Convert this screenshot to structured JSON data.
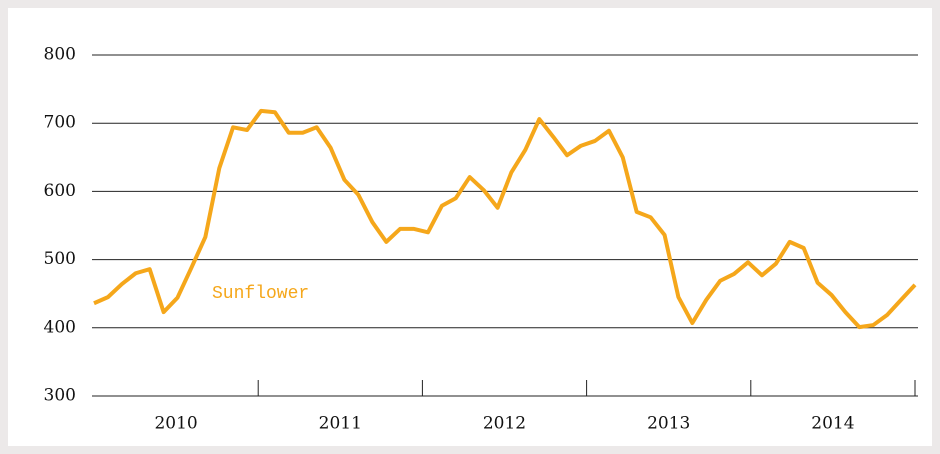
{
  "chart_data": {
    "type": "line",
    "series": [
      {
        "name": "Sunflower",
        "color": "#f5a71b",
        "x": [
          2010,
          2010.085,
          2010.169,
          2010.254,
          2010.339,
          2010.424,
          2010.508,
          2010.593,
          2010.678,
          2010.763,
          2010.847,
          2010.932,
          2011.017,
          2011.102,
          2011.186,
          2011.271,
          2011.356,
          2011.441,
          2011.525,
          2011.61,
          2011.695,
          2011.78,
          2011.864,
          2011.949,
          2012.034,
          2012.119,
          2012.203,
          2012.288,
          2012.373,
          2012.458,
          2012.542,
          2012.627,
          2012.712,
          2012.797,
          2012.881,
          2012.966,
          2013.051,
          2013.136,
          2013.22,
          2013.305,
          2013.39,
          2013.475,
          2013.559,
          2013.644,
          2013.729,
          2013.814,
          2013.898,
          2013.983,
          2014.068,
          2014.153,
          2014.237,
          2014.322,
          2014.407,
          2014.492,
          2014.576,
          2014.661,
          2014.746,
          2014.831,
          2014.915,
          2015
        ],
        "values": [
          436,
          445,
          464,
          480,
          486,
          423,
          444,
          488,
          533,
          634,
          694,
          690,
          718,
          716,
          686,
          686,
          694,
          664,
          617,
          595,
          555,
          526,
          545,
          545,
          540,
          579,
          590,
          621,
          602,
          576,
          628,
          661,
          706,
          680,
          653,
          667,
          674,
          689,
          650,
          570,
          562,
          536,
          445,
          407,
          441,
          469,
          479,
          496,
          477,
          494,
          526,
          517,
          466,
          448,
          423,
          401,
          404,
          419,
          441,
          463
        ]
      }
    ],
    "categories": [
      "2010",
      "2011",
      "2012",
      "2013",
      "2014"
    ],
    "xlim": [
      2010,
      2015
    ],
    "xticks": [
      2011,
      2012,
      2013,
      2014,
      2015
    ],
    "ylim": [
      300,
      800
    ],
    "yticks": [
      300,
      400,
      500,
      600,
      700,
      800
    ],
    "grid": true
  }
}
